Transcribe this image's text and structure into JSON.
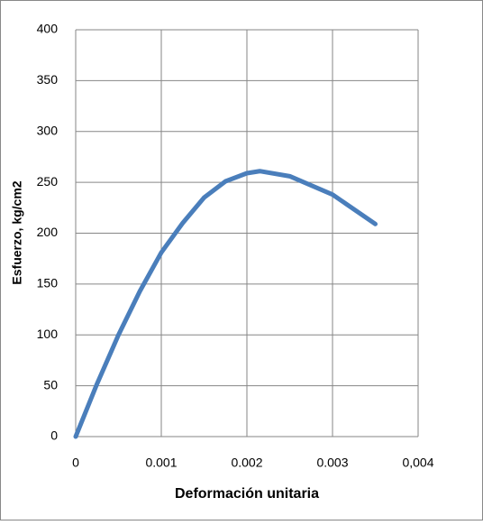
{
  "chart_data": {
    "type": "line",
    "xlabel": "Deformación unitaria",
    "ylabel": "Esfuerzo, kg/cm2",
    "x": [
      0,
      0.00025,
      0.0005,
      0.00075,
      0.001,
      0.00125,
      0.0015,
      0.00175,
      0.002,
      0.00215,
      0.0025,
      0.003,
      0.0035
    ],
    "series": [
      {
        "name": "Esfuerzo",
        "color": "#4a7ebb",
        "values": [
          0,
          52,
          100,
          143,
          181,
          210,
          235,
          251,
          259,
          261,
          256,
          238,
          209
        ]
      }
    ],
    "xlim": [
      0,
      0.004
    ],
    "xticks": [
      0,
      0.001,
      0.002,
      0.003,
      {
        "value": 0.004,
        "label": "0,004"
      }
    ],
    "ylim": [
      0,
      400
    ],
    "yticks": [
      0,
      50,
      100,
      150,
      200,
      250,
      300,
      350,
      400
    ],
    "grid": true
  }
}
